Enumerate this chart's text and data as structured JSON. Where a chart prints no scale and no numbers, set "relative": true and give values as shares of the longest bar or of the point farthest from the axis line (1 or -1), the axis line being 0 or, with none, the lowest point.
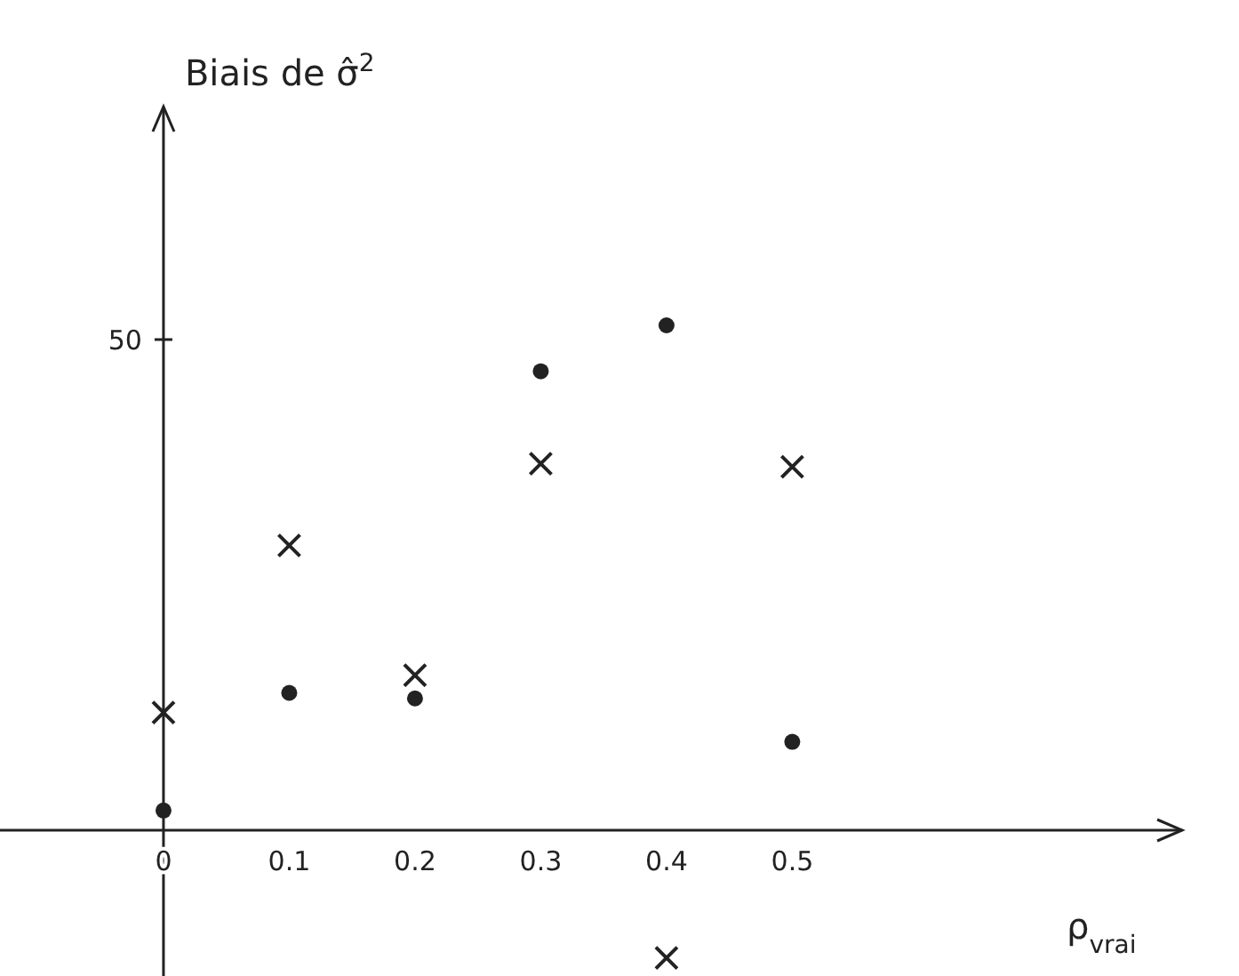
{
  "chart_data": {
    "type": "scatter",
    "xlabel": "ρ$_{vrai}$",
    "relative": true,
    "xlim": [
      -0.13,
      0.81
    ],
    "xticks": [
      0,
      0.1,
      0.2,
      0.3,
      0.4,
      0.5
    ],
    "annotations": [
      "Biais de σ̂$^{2}$",
      "50"
    ],
    "series": [
      {
        "marker": "circle",
        "color": "#222222",
        "x": [
          0,
          0.1,
          0.2,
          0.3,
          0.4,
          0.5
        ],
        "values": [
          0.039,
          0.272,
          0.261,
          0.909,
          1,
          0.175
        ]
      },
      {
        "marker": "cross",
        "color": "#222222",
        "x": [
          0,
          0.1,
          0.2,
          0.3,
          0.4,
          0.5
        ],
        "values": [
          0.233,
          0.564,
          0.307,
          0.726,
          -0.253,
          0.72
        ]
      }
    ]
  }
}
